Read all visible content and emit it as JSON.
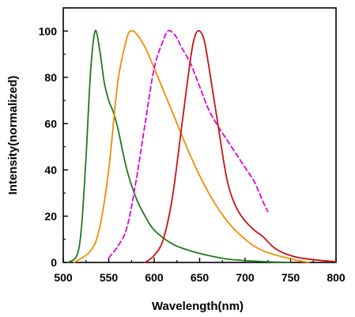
{
  "chart_data": {
    "type": "line",
    "title": "",
    "xlabel": "Wavelength(nm)",
    "ylabel": "Intensity(normalized)",
    "xlim": [
      500,
      800
    ],
    "ylim": [
      0,
      110
    ],
    "xticks": [
      500,
      550,
      600,
      650,
      700,
      750,
      800
    ],
    "yticks": [
      0,
      20,
      40,
      60,
      80,
      100
    ],
    "x_tick_labels": [
      "500",
      "550",
      "600",
      "650",
      "700",
      "750",
      "800"
    ],
    "y_tick_labels": [
      "0",
      "20",
      "40",
      "60",
      "80",
      "100"
    ],
    "grid": false,
    "legend": "none",
    "series": [
      {
        "color": "#1f7a1f",
        "dash": "solid",
        "x": [
          505,
          515,
          520,
          525,
          530,
          535,
          540,
          545,
          550,
          555,
          560,
          570,
          580,
          590,
          600,
          620,
          640,
          660,
          680,
          700,
          725,
          750
        ],
        "y": [
          0,
          3,
          15,
          45,
          82,
          100,
          92,
          78,
          70,
          65,
          58,
          40,
          28,
          20,
          14,
          8,
          5,
          3,
          1.5,
          0.8,
          0.3,
          0
        ]
      },
      {
        "color": "#f28c00",
        "dash": "solid",
        "x": [
          512,
          530,
          540,
          550,
          560,
          570,
          575,
          580,
          590,
          600,
          620,
          640,
          660,
          680,
          700,
          720,
          750,
          770
        ],
        "y": [
          0,
          5,
          15,
          40,
          78,
          97,
          100,
          99,
          93,
          84,
          65,
          46,
          30,
          18,
          10,
          5,
          1.5,
          0
        ]
      },
      {
        "color": "#dd00dd",
        "dash": "dashed",
        "x": [
          550,
          560,
          570,
          580,
          590,
          600,
          610,
          615,
          620,
          625,
          630,
          640,
          650,
          660,
          670,
          680,
          690,
          700,
          710,
          720,
          725
        ],
        "y": [
          2,
          7,
          15,
          35,
          60,
          84,
          96,
          100,
          99.5,
          97,
          93,
          86,
          76,
          66,
          59,
          53,
          47,
          41,
          35,
          26,
          22
        ]
      },
      {
        "color": "#cc1111",
        "dash": "solid",
        "x": [
          590,
          600,
          610,
          620,
          630,
          640,
          645,
          650,
          655,
          660,
          670,
          680,
          690,
          700,
          710,
          720,
          730,
          740,
          750,
          760,
          780,
          800
        ],
        "y": [
          0,
          3,
          10,
          28,
          58,
          88,
          98,
          100,
          96,
          85,
          60,
          36,
          24,
          18,
          14,
          11,
          7,
          4.5,
          3,
          2,
          1,
          0.3
        ]
      }
    ]
  }
}
